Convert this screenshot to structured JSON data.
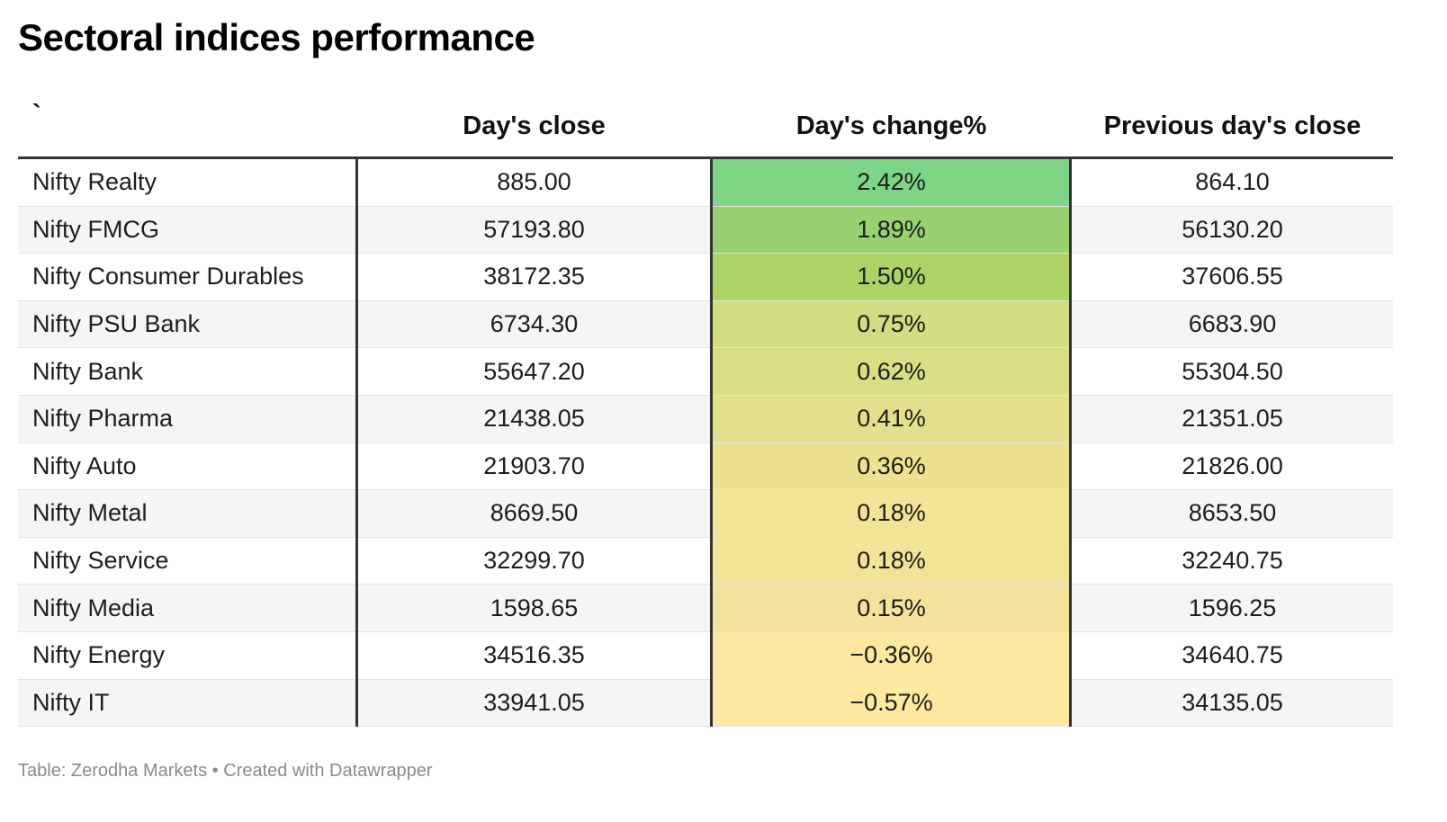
{
  "title": "Sectoral indices performance",
  "footer": "Table: Zerodha Markets • Created with Datawrapper",
  "chart_data": {
    "type": "table",
    "title": "Sectoral indices performance",
    "columns": [
      "`",
      "Day's close",
      "Day's change%",
      "Previous day's close"
    ],
    "rows": [
      {
        "name": "Nifty Realty",
        "close": "885.00",
        "change": "2.42%",
        "prev": "864.10",
        "color": "#7dd585"
      },
      {
        "name": "Nifty FMCG",
        "close": "57193.80",
        "change": "1.89%",
        "prev": "56130.20",
        "color": "#97d170"
      },
      {
        "name": "Nifty Consumer Durables",
        "close": "38172.35",
        "change": "1.50%",
        "prev": "37606.55",
        "color": "#add266"
      },
      {
        "name": "Nifty PSU Bank",
        "close": "6734.30",
        "change": "0.75%",
        "prev": "6683.90",
        "color": "#d3dc82"
      },
      {
        "name": "Nifty Bank",
        "close": "55647.20",
        "change": "0.62%",
        "prev": "55304.50",
        "color": "#d9de86"
      },
      {
        "name": "Nifty Pharma",
        "close": "21438.05",
        "change": "0.41%",
        "prev": "21351.05",
        "color": "#e2e08c"
      },
      {
        "name": "Nifty Auto",
        "close": "21903.70",
        "change": "0.36%",
        "prev": "21826.00",
        "color": "#ebe191"
      },
      {
        "name": "Nifty Metal",
        "close": "8669.50",
        "change": "0.18%",
        "prev": "8653.50",
        "color": "#f2e497"
      },
      {
        "name": "Nifty Service",
        "close": "32299.70",
        "change": "0.18%",
        "prev": "32240.75",
        "color": "#f2e497"
      },
      {
        "name": "Nifty Media",
        "close": "1598.65",
        "change": "0.15%",
        "prev": "1596.25",
        "color": "#f2e29b"
      },
      {
        "name": "Nifty Energy",
        "close": "34516.35",
        "change": "−0.36%",
        "prev": "34640.75",
        "color": "#fde89f"
      },
      {
        "name": "Nifty IT",
        "close": "33941.05",
        "change": "−0.57%",
        "prev": "34135.05",
        "color": "#fde9a0"
      }
    ]
  }
}
